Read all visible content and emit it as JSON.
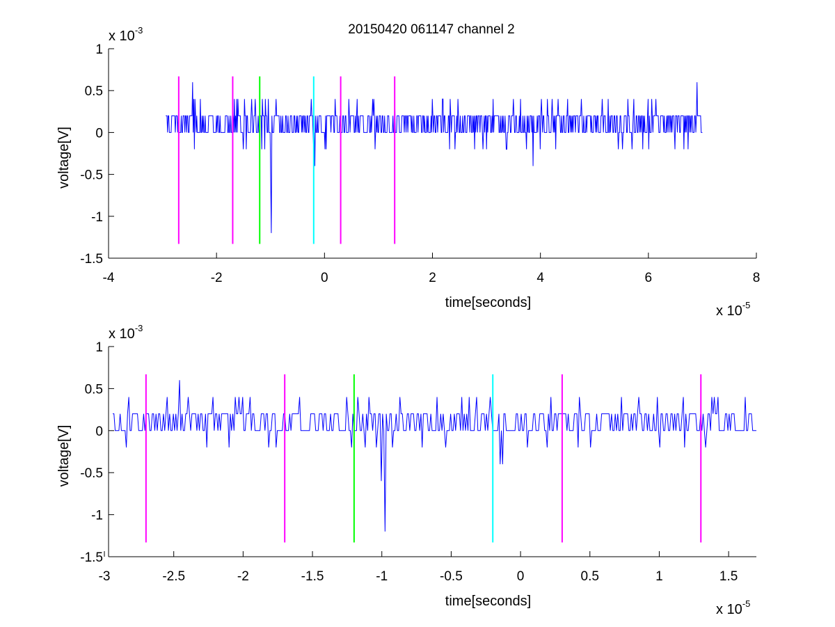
{
  "title": "20150420 061147 channel 2",
  "colors": {
    "trace": "#0000ff",
    "magenta": "#ff00ff",
    "green": "#00ff00",
    "cyan": "#00ffff",
    "axis": "#000000"
  },
  "chart_data": [
    {
      "type": "line",
      "title": "20150420 061147 channel 2",
      "xlabel": "time[seconds]",
      "ylabel": "voltage[V]",
      "x_exponent_label": {
        "base": "x 10",
        "exp": "-5"
      },
      "y_exponent_label": {
        "base": "x 10",
        "exp": "-3"
      },
      "xlim": [
        -4,
        8
      ],
      "ylim": [
        -1.5,
        1
      ],
      "xticks": [
        -4,
        -2,
        0,
        2,
        4,
        6,
        8
      ],
      "xtick_labels": [
        "-4",
        "-2",
        "0",
        "2",
        "4",
        "6",
        "8"
      ],
      "yticks": [
        -1.5,
        -1,
        -0.5,
        0,
        0.5,
        1
      ],
      "ytick_labels": [
        "-1.5",
        "-1",
        "-0.5",
        "0",
        "0.5",
        "1"
      ],
      "grid": false,
      "series": [
        {
          "color": "#0000ff",
          "x_range": [
            -2.94,
            7.0
          ],
          "baseline_levels": [
            0,
            0.2
          ],
          "spikes": [
            {
              "x": -2.44,
              "y": 0.6
            },
            {
              "x": -2.3,
              "y": 0.4
            },
            {
              "x": -1.6,
              "y": 0.4
            },
            {
              "x": -1.5,
              "y": -0.2
            },
            {
              "x": -1.28,
              "y": 0.4
            },
            {
              "x": -1.16,
              "y": -0.2
            },
            {
              "x": -1.1,
              "y": 0.4
            },
            {
              "x": -1.0,
              "y": -0.6
            },
            {
              "x": -0.98,
              "y": -1.2
            },
            {
              "x": -0.9,
              "y": 0.4
            },
            {
              "x": -0.25,
              "y": 0.4
            },
            {
              "x": -0.2,
              "y": -0.2
            },
            {
              "x": -0.18,
              "y": -0.4
            },
            {
              "x": 0.2,
              "y": 0.4
            },
            {
              "x": 1.3,
              "y": 0.4
            },
            {
              "x": 2.2,
              "y": 0.4
            },
            {
              "x": 3.0,
              "y": -0.2
            },
            {
              "x": 3.5,
              "y": 0.4
            },
            {
              "x": 3.86,
              "y": -0.4
            },
            {
              "x": 4.5,
              "y": 0.4
            },
            {
              "x": 5.7,
              "y": -0.2
            },
            {
              "x": 6.0,
              "y": 0.4
            },
            {
              "x": 6.9,
              "y": 0.6
            }
          ]
        }
      ],
      "vlines": [
        {
          "x": -2.7,
          "color": "#ff00ff"
        },
        {
          "x": -1.7,
          "color": "#ff00ff"
        },
        {
          "x": -1.2,
          "color": "#00ff00"
        },
        {
          "x": -0.2,
          "color": "#00ffff"
        },
        {
          "x": 0.3,
          "color": "#ff00ff"
        },
        {
          "x": 1.3,
          "color": "#ff00ff"
        }
      ],
      "vline_yrange": [
        -1.33,
        0.67
      ]
    },
    {
      "type": "line",
      "xlabel": "time[seconds]",
      "ylabel": "voltage[V]",
      "x_exponent_label": {
        "base": "x 10",
        "exp": "-5"
      },
      "y_exponent_label": {
        "base": "x 10",
        "exp": "-3"
      },
      "xlim": [
        -2.97,
        1.7
      ],
      "ylim": [
        -1.5,
        1
      ],
      "xticks": [
        -3,
        -2.5,
        -2,
        -1.5,
        -1,
        -0.5,
        0,
        0.5,
        1,
        1.5
      ],
      "xtick_labels": [
        "-3",
        "-2.5",
        "-2",
        "-1.5",
        "-1",
        "-0.5",
        "0",
        "0.5",
        "1",
        "1.5"
      ],
      "yticks": [
        -1.5,
        -1,
        -0.5,
        0,
        0.5,
        1
      ],
      "ytick_labels": [
        "-1.5",
        "-1",
        "-0.5",
        "0",
        "0.5",
        "1"
      ],
      "grid": false,
      "series": [
        {
          "color": "#0000ff",
          "x_range": [
            -2.94,
            1.7
          ],
          "baseline_levels": [
            0,
            0.2
          ],
          "spikes": [
            {
              "x": -2.84,
              "y": -0.2
            },
            {
              "x": -2.82,
              "y": 0.4
            },
            {
              "x": -2.55,
              "y": 0.4
            },
            {
              "x": -2.46,
              "y": 0.6
            },
            {
              "x": -2.4,
              "y": 0.4
            },
            {
              "x": -2.1,
              "y": -0.2
            },
            {
              "x": -1.95,
              "y": 0.4
            },
            {
              "x": -1.82,
              "y": -0.2
            },
            {
              "x": -1.59,
              "y": 0.4
            },
            {
              "x": -1.25,
              "y": 0.4
            },
            {
              "x": -1.17,
              "y": 0.4
            },
            {
              "x": -1.0,
              "y": -0.6
            },
            {
              "x": -0.98,
              "y": -1.2
            },
            {
              "x": -0.6,
              "y": 0.4
            },
            {
              "x": -0.37,
              "y": 0.4
            },
            {
              "x": -0.22,
              "y": 0.4
            },
            {
              "x": -0.15,
              "y": -0.4
            },
            {
              "x": -0.13,
              "y": -0.4
            },
            {
              "x": 0.05,
              "y": -0.2
            },
            {
              "x": 0.22,
              "y": 0.4
            },
            {
              "x": 0.42,
              "y": 0.4
            },
            {
              "x": 0.5,
              "y": -0.2
            },
            {
              "x": 0.85,
              "y": 0.4
            },
            {
              "x": 1.0,
              "y": -0.2
            },
            {
              "x": 1.18,
              "y": -0.2
            },
            {
              "x": 1.4,
              "y": 0.4
            },
            {
              "x": 1.62,
              "y": 0.4
            }
          ]
        }
      ],
      "vlines": [
        {
          "x": -2.7,
          "color": "#ff00ff"
        },
        {
          "x": -1.7,
          "color": "#ff00ff"
        },
        {
          "x": -1.2,
          "color": "#00ff00"
        },
        {
          "x": -0.2,
          "color": "#00ffff"
        },
        {
          "x": 0.3,
          "color": "#ff00ff"
        },
        {
          "x": 1.3,
          "color": "#ff00ff"
        }
      ],
      "vline_yrange": [
        -1.33,
        0.67
      ]
    }
  ]
}
